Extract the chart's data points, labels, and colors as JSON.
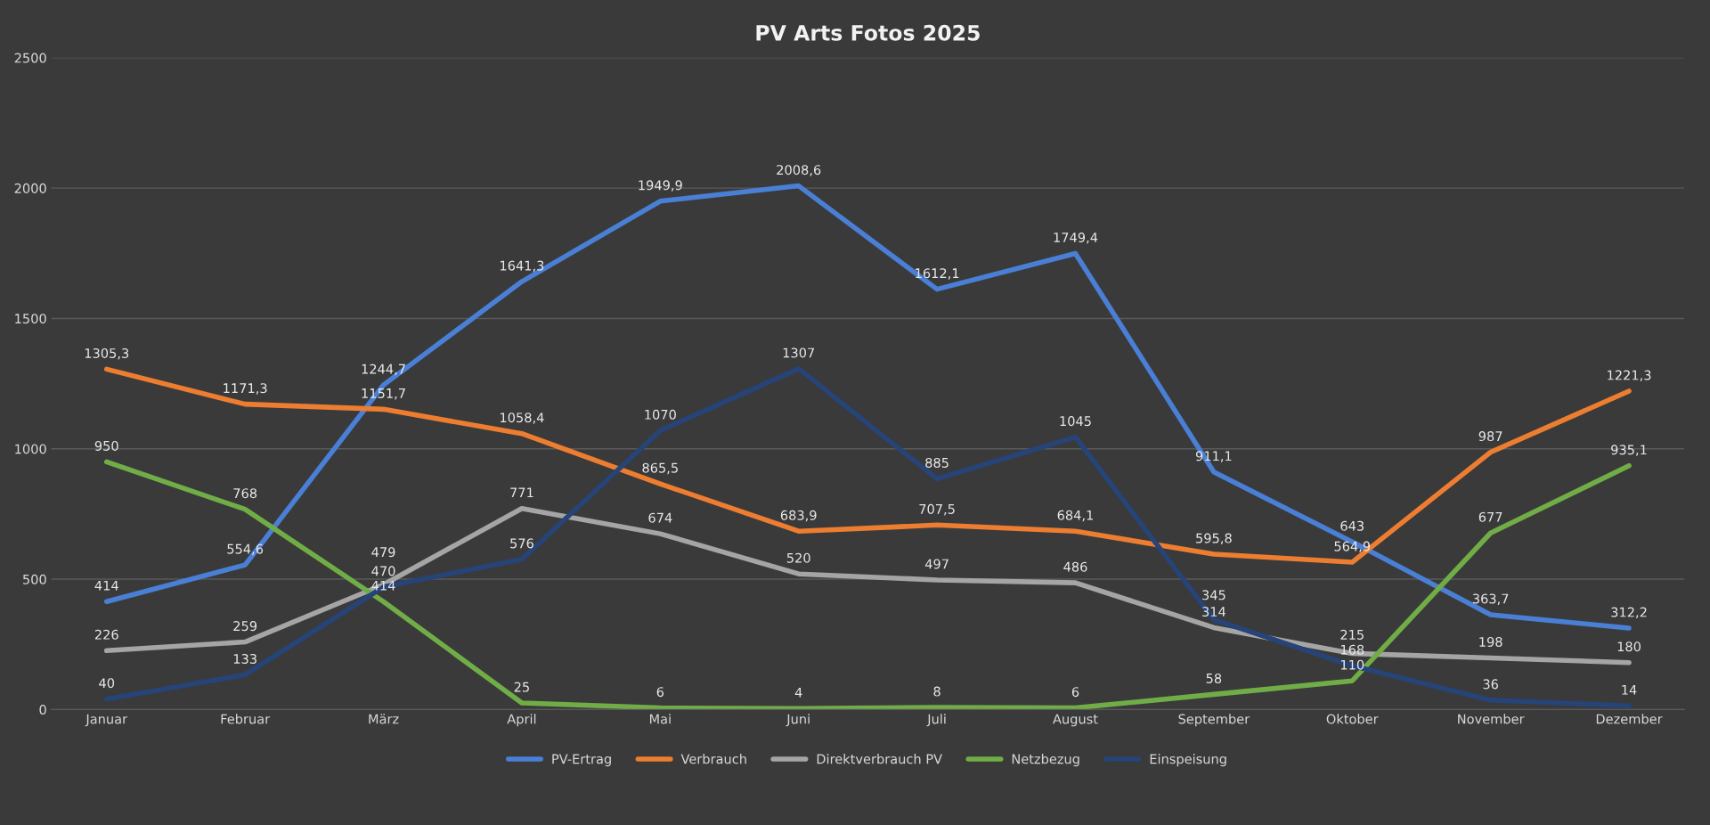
{
  "chart_data": {
    "type": "line",
    "title": "PV Arts Fotos 2025",
    "categories": [
      "Januar",
      "Februar",
      "März",
      "April",
      "Mai",
      "Juni",
      "Juli",
      "August",
      "September",
      "Oktober",
      "November",
      "Dezember"
    ],
    "ylim": [
      0,
      2500
    ],
    "yticks": [
      0,
      500,
      1000,
      1500,
      2000,
      2500
    ],
    "grid": "y",
    "legend": "bottom",
    "marker": "none",
    "line_style": "solid",
    "series": [
      {
        "name": "PV-Ertrag",
        "color": "#4a7fd6",
        "values": [
          414,
          554.6,
          1244.7,
          1641.3,
          1949.9,
          2008.6,
          1612.1,
          1749.4,
          911.1,
          643,
          363.7,
          312.2
        ],
        "value_labels": [
          "414",
          "554,6",
          "1244,7",
          "1641,3",
          "1949,9",
          "2008,6",
          "1612,1",
          "1749,4",
          "911,1",
          "643",
          "363,7",
          "312,2"
        ]
      },
      {
        "name": "Verbrauch",
        "color": "#ed7d31",
        "values": [
          1305.3,
          1171.3,
          1151.7,
          1058.4,
          865.5,
          683.9,
          707.5,
          684.1,
          595.8,
          564.9,
          987,
          1221.3
        ],
        "value_labels": [
          "1305,3",
          "1171,3",
          "1151,7",
          "1058,4",
          "865,5",
          "683,9",
          "707,5",
          "684,1",
          "595,8",
          "564,9",
          "987",
          "1221,3"
        ]
      },
      {
        "name": "Direktverbrauch PV",
        "color": "#a5a5a5",
        "values": [
          226,
          259,
          479,
          771,
          674,
          520,
          497,
          486,
          314,
          215,
          198,
          180
        ],
        "value_labels": [
          "226",
          "259",
          "479",
          "771",
          "674",
          "520",
          "497",
          "486",
          "314",
          "215",
          "198",
          "180"
        ]
      },
      {
        "name": "Netzbezug",
        "color": "#70ad47",
        "values": [
          950,
          768,
          414,
          25,
          6,
          4,
          8,
          6,
          58,
          110,
          677,
          935.1
        ],
        "value_labels": [
          "950",
          "768",
          "414",
          "25",
          "6",
          "4",
          "8",
          "6",
          "58",
          "110",
          "677",
          "935,1"
        ]
      },
      {
        "name": "Einspeisung",
        "color": "#264478",
        "values": [
          40,
          133,
          470,
          576,
          1070,
          1307,
          885,
          1045,
          345,
          168,
          36,
          14
        ],
        "value_labels": [
          "40",
          "133",
          "470",
          "576",
          "1070",
          "1307",
          "885",
          "1045",
          "345",
          "168",
          "36",
          "14"
        ]
      }
    ]
  }
}
